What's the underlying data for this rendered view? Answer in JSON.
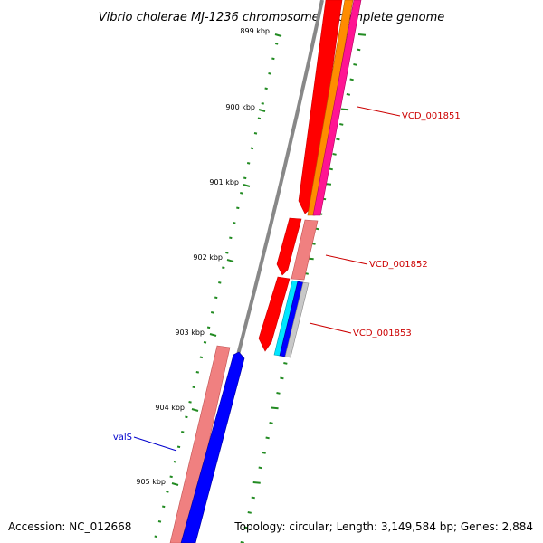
{
  "title": "Vibrio cholerae MJ-1236 chromosome 1, complete genome",
  "accession": "Accession: NC_012668",
  "topology": "Topology: circular; Length: 3,149,584 bp; Genes: 2,884",
  "ticks": [
    {
      "label": "899 kbp"
    },
    {
      "label": "900 kbp"
    },
    {
      "label": "901 kbp"
    },
    {
      "label": "902 kbp"
    },
    {
      "label": "903 kbp"
    },
    {
      "label": "904 kbp"
    },
    {
      "label": "905 kbp"
    }
  ],
  "genes": [
    {
      "label": "VCD_001851",
      "color": "#cc0000"
    },
    {
      "label": "VCD_001852",
      "color": "#cc0000"
    },
    {
      "label": "VCD_001853",
      "color": "#cc0000"
    },
    {
      "label": "valS",
      "color": "#0000cc"
    }
  ],
  "colors": {
    "backbone": "#888888",
    "cds_red": "#ff0000",
    "cds_salmon": "#f08080",
    "cds_orange": "#ff8c00",
    "cds_pink": "#ff1493",
    "cds_blue": "#0000ff",
    "cds_cyan": "#00e5ff",
    "tick_green": "#228b22"
  }
}
